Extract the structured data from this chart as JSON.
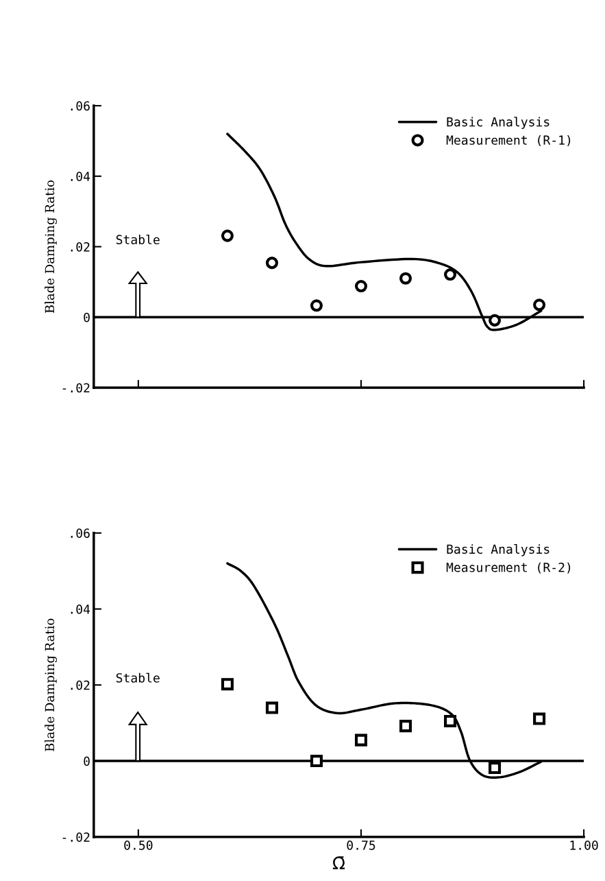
{
  "chart_data": [
    {
      "type": "line",
      "ylabel": "Blade Damping Ratio",
      "xlim": [
        0.45,
        1.0
      ],
      "xticks": [
        {
          "value": 0.5,
          "label": null
        },
        {
          "value": 0.75,
          "label": null
        },
        {
          "value": 1.0,
          "label": null
        }
      ],
      "ylim": [
        -0.02,
        0.06
      ],
      "yticks": [
        {
          "value": -0.02,
          "label": "-.02"
        },
        {
          "value": 0,
          "label": "0"
        },
        {
          "value": 0.02,
          "label": ".02"
        },
        {
          "value": 0.04,
          "label": ".04"
        },
        {
          "value": 0.06,
          "label": ".06"
        }
      ],
      "tick_labels": "y",
      "grid": false,
      "legend": "top right",
      "ref_lines": [
        {
          "axis": "y",
          "value": 0,
          "color": "#000000",
          "line_style": "solid"
        }
      ],
      "annotations": [
        "Stable"
      ],
      "series": [
        {
          "name": "Basic Analysis",
          "color": "#000000",
          "marker": "none",
          "line_style": "solid",
          "x": [
            0.6,
            0.62,
            0.637,
            0.653,
            0.665,
            0.677,
            0.692,
            0.711,
            0.75,
            0.808,
            0.839,
            0.859,
            0.874,
            0.886,
            0.892,
            0.901,
            0.925,
            0.952
          ],
          "values": [
            0.052,
            0.047,
            0.0418,
            0.0341,
            0.0264,
            0.021,
            0.0164,
            0.0145,
            0.0156,
            0.0165,
            0.0152,
            0.0125,
            0.0072,
            0.0002,
            -0.0028,
            -0.0036,
            -0.0021,
            0.0018
          ]
        },
        {
          "name": "Measurement (R-1)",
          "type": "scatter",
          "color": "#000000",
          "marker": "circle",
          "x": [
            0.6,
            0.65,
            0.7,
            0.75,
            0.8,
            0.85,
            0.9,
            0.95
          ],
          "values": [
            0.0231,
            0.0154,
            0.0033,
            0.0088,
            0.011,
            0.0121,
            -0.0009,
            0.0035
          ]
        }
      ]
    },
    {
      "type": "line",
      "ylabel": "Blade Damping Ratio",
      "xlabel": "Ω̄",
      "xlim": [
        0.45,
        1.0
      ],
      "xticks": [
        {
          "value": 0.5,
          "label": "0.50"
        },
        {
          "value": 0.75,
          "label": "0.75"
        },
        {
          "value": 1.0,
          "label": "1.00"
        }
      ],
      "ylim": [
        -0.02,
        0.06
      ],
      "yticks": [
        {
          "value": -0.02,
          "label": "-.02"
        },
        {
          "value": 0,
          "label": "0"
        },
        {
          "value": 0.02,
          "label": ".02"
        },
        {
          "value": 0.04,
          "label": ".04"
        },
        {
          "value": 0.06,
          "label": ".06"
        }
      ],
      "grid": false,
      "legend": "top right",
      "ref_lines": [
        {
          "axis": "y",
          "value": 0,
          "color": "#000000",
          "line_style": "solid"
        }
      ],
      "annotations": [
        "Stable"
      ],
      "series": [
        {
          "name": "Basic Analysis",
          "color": "#000000",
          "marker": "none",
          "line_style": "solid",
          "x": [
            0.6,
            0.615,
            0.63,
            0.653,
            0.668,
            0.68,
            0.699,
            0.723,
            0.75,
            0.789,
            0.828,
            0.851,
            0.862,
            0.872,
            0.886,
            0.905,
            0.928,
            0.952
          ],
          "values": [
            0.052,
            0.05,
            0.046,
            0.036,
            0.0276,
            0.0208,
            0.0147,
            0.0126,
            0.0135,
            0.0152,
            0.0147,
            0.0124,
            0.0078,
            0.0002,
            -0.0037,
            -0.0043,
            -0.0029,
            -0.0002
          ]
        },
        {
          "name": "Measurement (R-2)",
          "type": "scatter",
          "color": "#000000",
          "marker": "square",
          "x": [
            0.6,
            0.65,
            0.7,
            0.75,
            0.8,
            0.85,
            0.9,
            0.95
          ],
          "values": [
            0.0202,
            0.014,
            0.0,
            0.0055,
            0.0092,
            0.0105,
            -0.0018,
            0.0111
          ]
        }
      ]
    }
  ]
}
